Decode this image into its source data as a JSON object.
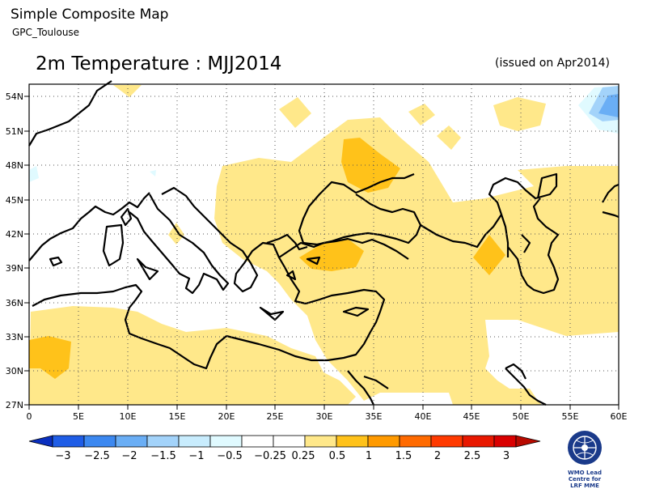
{
  "header": {
    "title": "Simple Composite Map",
    "subtitle": "GPC_Toulouse"
  },
  "map": {
    "title": "2m Temperature : MJJ2014",
    "issued": "(issued on Apr2014)",
    "lat_labels": [
      "54N",
      "51N",
      "48N",
      "45N",
      "42N",
      "39N",
      "36N",
      "33N",
      "30N",
      "27N"
    ],
    "lon_labels": [
      "0",
      "5E",
      "10E",
      "15E",
      "20E",
      "25E",
      "30E",
      "35E",
      "40E",
      "45E",
      "50E",
      "55E",
      "60E"
    ],
    "extent": {
      "lon": [
        0,
        60
      ],
      "lat": [
        27,
        55
      ]
    }
  },
  "legend": {
    "labels": [
      "−3",
      "−2.5",
      "−2",
      "−1.5",
      "−1",
      "−0.5",
      "−0.25",
      "0.25",
      "0.5",
      "1",
      "1.5",
      "2",
      "2.5",
      "3"
    ],
    "colors": [
      "#0a2fbf",
      "#1f5de6",
      "#3c88f0",
      "#6aaef5",
      "#a3d3fa",
      "#e0faff",
      "#ffffff",
      "#ffe88a",
      "#ffc21a",
      "#ff9a00",
      "#ff6a00",
      "#ff3a00",
      "#d90000",
      "#b80a00"
    ]
  },
  "logo": {
    "icon": "wmo-emblem-icon",
    "line1": "WMO Lead Centre for",
    "line2": "LRF MME"
  }
}
